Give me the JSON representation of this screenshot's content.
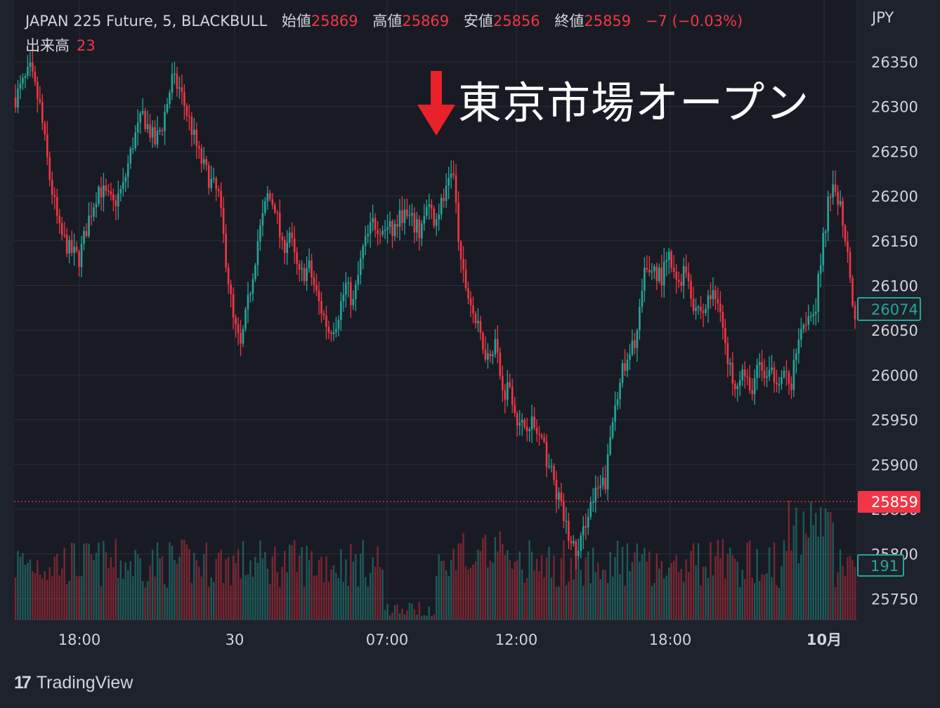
{
  "header": {
    "symbol": "JAPAN 225 Future, 5, BLACKBULL",
    "open_label": "始値",
    "open": "25869",
    "high_label": "高値",
    "high": "25869",
    "low_label": "安値",
    "low": "25856",
    "close_label": "終値",
    "close": "25859",
    "change": "−7 (−0.03%)",
    "volume_label": "出来高",
    "volume": "23"
  },
  "annotation": {
    "text": "東京市場オープン"
  },
  "branding": {
    "mark": "17",
    "name": "TradingView"
  },
  "colors": {
    "background": "#1e222d",
    "up": "#26a69a",
    "down": "#f23645",
    "grid": "#2a2e39",
    "arrow": "#e8222a"
  },
  "chart_data": {
    "type": "candlestick",
    "currency": "JPY",
    "y_ticks": [
      26350,
      26300,
      26250,
      26200,
      26150,
      26100,
      26050,
      26000,
      25950,
      25900,
      25850,
      25800,
      25750
    ],
    "ylim": [
      25727,
      26372
    ],
    "x_ticks": [
      "18:00",
      "30",
      "07:00",
      "12:00",
      "18:00",
      "10月"
    ],
    "last_price": "25859",
    "price_marker": "26074",
    "volume_marker": "191",
    "price_path": [
      [
        0,
        26310
      ],
      [
        6,
        26340
      ],
      [
        10,
        26300
      ],
      [
        14,
        26220
      ],
      [
        18,
        26160
      ],
      [
        22,
        26140
      ],
      [
        26,
        26130
      ],
      [
        30,
        26175
      ],
      [
        34,
        26210
      ],
      [
        40,
        26190
      ],
      [
        44,
        26210
      ],
      [
        48,
        26260
      ],
      [
        52,
        26290
      ],
      [
        57,
        26260
      ],
      [
        60,
        26280
      ],
      [
        64,
        26330
      ],
      [
        67,
        26320
      ],
      [
        72,
        26275
      ],
      [
        75,
        26245
      ],
      [
        79,
        26220
      ],
      [
        83,
        26200
      ],
      [
        86,
        26130
      ],
      [
        89,
        26060
      ],
      [
        92,
        26030
      ],
      [
        95,
        26080
      ],
      [
        99,
        26150
      ],
      [
        103,
        26200
      ],
      [
        106,
        26190
      ],
      [
        109,
        26140
      ],
      [
        112,
        26160
      ],
      [
        114,
        26130
      ],
      [
        116,
        26110
      ],
      [
        120,
        26120
      ],
      [
        124,
        26080
      ],
      [
        128,
        26050
      ],
      [
        131,
        26060
      ],
      [
        135,
        26100
      ],
      [
        138,
        26080
      ],
      [
        142,
        26140
      ],
      [
        146,
        26170
      ],
      [
        150,
        26165
      ],
      [
        154,
        26160
      ],
      [
        158,
        26180
      ],
      [
        162,
        26170
      ],
      [
        165,
        26160
      ],
      [
        168,
        26185
      ],
      [
        171,
        26175
      ],
      [
        174,
        26190
      ],
      [
        177,
        26210
      ],
      [
        179,
        26220
      ],
      [
        182,
        26120
      ],
      [
        185,
        26090
      ],
      [
        189,
        26050
      ],
      [
        193,
        26020
      ],
      [
        196,
        26040
      ],
      [
        199,
        25980
      ],
      [
        202,
        25990
      ],
      [
        206,
        25940
      ],
      [
        210,
        25950
      ],
      [
        214,
        25930
      ],
      [
        218,
        25900
      ],
      [
        221,
        25870
      ],
      [
        224,
        25840
      ],
      [
        227,
        25810
      ],
      [
        230,
        25800
      ],
      [
        234,
        25850
      ],
      [
        238,
        25870
      ],
      [
        241,
        25880
      ],
      [
        244,
        25950
      ],
      [
        247,
        26000
      ],
      [
        250,
        26010
      ],
      [
        254,
        26050
      ],
      [
        257,
        26110
      ],
      [
        260,
        26120
      ],
      [
        264,
        26110
      ],
      [
        267,
        26130
      ],
      [
        270,
        26100
      ],
      [
        274,
        26120
      ],
      [
        277,
        26080
      ],
      [
        281,
        26070
      ],
      [
        284,
        26090
      ],
      [
        288,
        26080
      ],
      [
        291,
        26010
      ],
      [
        294,
        25995
      ],
      [
        297,
        26005
      ],
      [
        300,
        25980
      ],
      [
        304,
        26010
      ],
      [
        307,
        25995
      ],
      [
        310,
        26000
      ],
      [
        314,
        26000
      ],
      [
        317,
        25990
      ],
      [
        320,
        26050
      ],
      [
        324,
        26070
      ],
      [
        327,
        26080
      ],
      [
        330,
        26150
      ],
      [
        332,
        26190
      ],
      [
        334,
        26220
      ],
      [
        337,
        26190
      ],
      [
        340,
        26140
      ],
      [
        343,
        26060
      ]
    ]
  }
}
